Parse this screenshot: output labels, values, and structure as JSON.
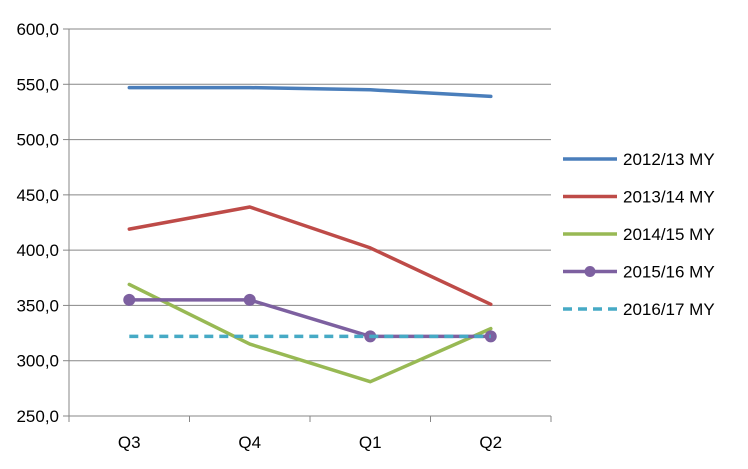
{
  "chart_data": {
    "type": "line",
    "title": "",
    "xlabel": "",
    "ylabel": "",
    "categories": [
      "Q3",
      "Q4",
      "Q1",
      "Q2"
    ],
    "ylim": [
      250,
      600
    ],
    "yticks": [
      250,
      300,
      350,
      400,
      450,
      500,
      550,
      600
    ],
    "ytick_labels": [
      "250,0",
      "300,0",
      "350,0",
      "400,0",
      "450,0",
      "500,0",
      "550,0",
      "600,0"
    ],
    "grid": "horizontal",
    "legend_position": "right",
    "series": [
      {
        "name": "2012/13 MY",
        "values": [
          547,
          547,
          545,
          539
        ],
        "color": "#4a7ebb",
        "style": "solid",
        "markers": false
      },
      {
        "name": "2013/14 MY",
        "values": [
          419,
          439,
          402,
          351
        ],
        "color": "#be4b48",
        "style": "solid",
        "markers": false
      },
      {
        "name": "2014/15 MY",
        "values": [
          369,
          315,
          281,
          329
        ],
        "color": "#98b954",
        "style": "solid",
        "markers": false
      },
      {
        "name": "2015/16 MY",
        "values": [
          355,
          355,
          322,
          322
        ],
        "color": "#7d60a0",
        "style": "solid",
        "markers": true
      },
      {
        "name": "2016/17 MY",
        "values": [
          322,
          322,
          322,
          322
        ],
        "color": "#46aac5",
        "style": "dashed",
        "markers": false
      }
    ]
  }
}
